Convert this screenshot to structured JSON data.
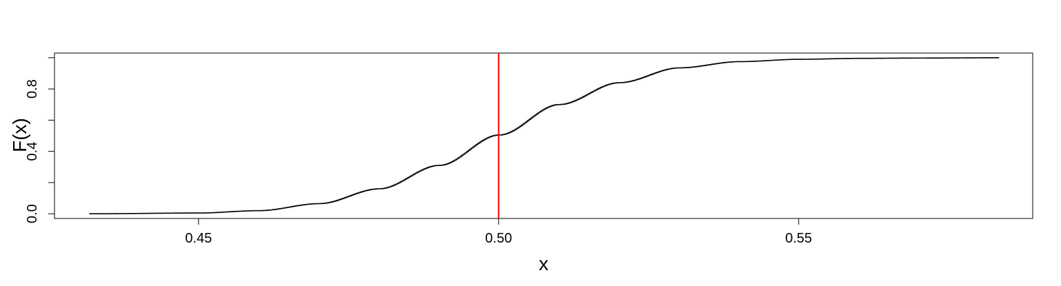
{
  "chart_data": {
    "type": "line",
    "title": "",
    "xlabel": "x",
    "ylabel": "F(x)",
    "xlim": [
      0.426,
      0.589
    ],
    "ylim": [
      -0.03,
      1.03
    ],
    "x_ticks": [
      0.45,
      0.5,
      0.55
    ],
    "x_tick_labels": [
      "0.45",
      "0.50",
      "0.55"
    ],
    "y_ticks": [
      0.0,
      0.2,
      0.4,
      0.6,
      0.8,
      1.0
    ],
    "y_tick_labels": [
      "0.0",
      "",
      "0.4",
      "",
      "0.8",
      ""
    ],
    "grid": false,
    "legend": "none",
    "series": [
      {
        "style": "step",
        "color": "#000000",
        "x": [
          0.4318,
          0.45,
          0.46,
          0.47,
          0.48,
          0.49,
          0.5,
          0.51,
          0.52,
          0.53,
          0.54,
          0.55,
          0.56,
          0.57,
          0.5834
        ],
        "y": [
          0.0,
          0.005,
          0.02,
          0.065,
          0.16,
          0.31,
          0.505,
          0.7,
          0.84,
          0.935,
          0.975,
          0.99,
          0.996,
          0.998,
          1.0
        ]
      }
    ],
    "reference_lines": [
      {
        "orientation": "vertical",
        "x": 0.5,
        "color": "#ff0000"
      }
    ]
  },
  "colors": {
    "curve": "#000000",
    "reference_line": "#ff0000",
    "axes": "#000000"
  }
}
